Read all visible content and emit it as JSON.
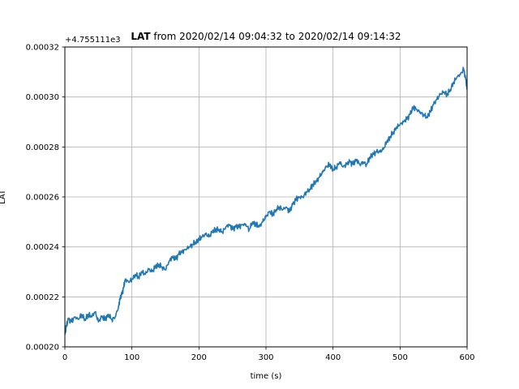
{
  "chart_data": {
    "type": "line",
    "title": "LAT from 2020/02/14 09:04:32 to 2020/02/14 09:14:32",
    "title_bold_part": "LAT",
    "xlabel": "time (s)",
    "ylabel": "LAT",
    "offset_label": "+4.755111e3",
    "xlim": [
      0,
      600
    ],
    "ylim": [
      0.0002,
      0.00032
    ],
    "x_ticks": [
      "0",
      "100",
      "200",
      "300",
      "400",
      "500",
      "600"
    ],
    "y_ticks": [
      "0.00020",
      "0.00022",
      "0.00024",
      "0.00026",
      "0.00028",
      "0.00030",
      "0.00032"
    ],
    "grid": true,
    "series": [
      {
        "color": "#1f77b4",
        "x": [
          0,
          2,
          5,
          10,
          15,
          20,
          25,
          30,
          35,
          40,
          45,
          50,
          55,
          60,
          65,
          70,
          75,
          80,
          82,
          85,
          88,
          90,
          95,
          100,
          105,
          110,
          115,
          120,
          125,
          130,
          135,
          140,
          145,
          150,
          155,
          160,
          165,
          170,
          175,
          180,
          185,
          190,
          195,
          200,
          205,
          210,
          215,
          220,
          225,
          230,
          235,
          240,
          245,
          250,
          255,
          260,
          265,
          270,
          275,
          280,
          285,
          290,
          295,
          300,
          305,
          310,
          315,
          320,
          325,
          330,
          335,
          340,
          345,
          350,
          355,
          360,
          365,
          370,
          375,
          380,
          385,
          390,
          395,
          400,
          405,
          410,
          415,
          420,
          425,
          430,
          435,
          440,
          445,
          450,
          455,
          460,
          465,
          470,
          475,
          480,
          485,
          490,
          495,
          500,
          505,
          510,
          515,
          520,
          525,
          530,
          535,
          540,
          545,
          550,
          555,
          560,
          565,
          570,
          575,
          580,
          585,
          590,
          595,
          598,
          600
        ],
        "y": [
          0.000205,
          0.000208,
          0.000211,
          0.00021,
          0.000212,
          0.000211,
          0.000213,
          0.000211,
          0.000213,
          0.000212,
          0.000214,
          0.00021,
          0.000212,
          0.000211,
          0.000213,
          0.000211,
          0.000212,
          0.000216,
          0.000219,
          0.000221,
          0.000224,
          0.000227,
          0.000226,
          0.000227,
          0.000229,
          0.000228,
          0.00023,
          0.000229,
          0.000231,
          0.00023,
          0.000232,
          0.000233,
          0.000232,
          0.000231,
          0.000234,
          0.000236,
          0.000235,
          0.000237,
          0.000238,
          0.000239,
          0.00024,
          0.000241,
          0.000242,
          0.000243,
          0.000244,
          0.000245,
          0.000244,
          0.000246,
          0.000247,
          0.000247,
          0.000246,
          0.000248,
          0.000249,
          0.000247,
          0.000248,
          0.000248,
          0.000249,
          0.000249,
          0.000247,
          0.00025,
          0.000249,
          0.000248,
          0.00025,
          0.000252,
          0.000254,
          0.000253,
          0.000255,
          0.000256,
          0.000255,
          0.000256,
          0.000254,
          0.000257,
          0.000259,
          0.00026,
          0.00026,
          0.000262,
          0.000263,
          0.000265,
          0.000266,
          0.000268,
          0.00027,
          0.000272,
          0.000273,
          0.000271,
          0.000272,
          0.000274,
          0.000272,
          0.000273,
          0.000274,
          0.000273,
          0.000275,
          0.000273,
          0.000274,
          0.000273,
          0.000276,
          0.000277,
          0.000278,
          0.000278,
          0.000279,
          0.000282,
          0.000284,
          0.000286,
          0.000288,
          0.000289,
          0.00029,
          0.000291,
          0.000293,
          0.000296,
          0.000295,
          0.000294,
          0.000293,
          0.000292,
          0.000294,
          0.000297,
          0.000299,
          0.000301,
          0.000302,
          0.000301,
          0.000303,
          0.000306,
          0.000308,
          0.000309,
          0.000311,
          0.000307,
          0.000303
        ]
      }
    ]
  }
}
